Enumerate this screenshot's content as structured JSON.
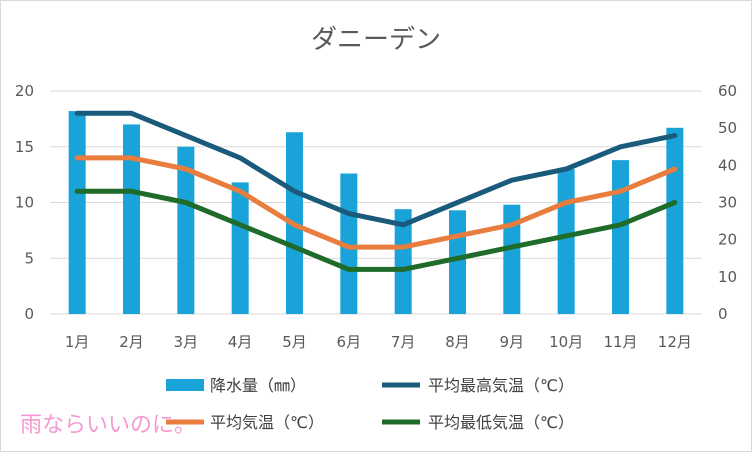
{
  "chart_data": {
    "type": "bar+line",
    "title": "ダニーデン",
    "categories": [
      "1月",
      "2月",
      "3月",
      "4月",
      "5月",
      "6月",
      "7月",
      "8月",
      "9月",
      "10月",
      "11月",
      "12月"
    ],
    "left_axis": {
      "min": 0,
      "max": 20,
      "ticks": [
        "0",
        "5",
        "10",
        "15",
        "20"
      ]
    },
    "right_axis": {
      "min": 0,
      "max": 60,
      "ticks": [
        "0",
        "10",
        "20",
        "30",
        "40",
        "50",
        "60"
      ]
    },
    "grid": true,
    "bar_series": {
      "name": "降水量（㎜）",
      "axis": "right",
      "color": "#1aa3d9",
      "values": [
        54.6,
        51.0,
        45.0,
        35.4,
        48.9,
        37.8,
        28.2,
        27.9,
        29.4,
        39.0,
        41.4,
        50.1
      ]
    },
    "line_series": [
      {
        "name": "平均最高気温（℃）",
        "axis": "left",
        "color": "#1a5a7a",
        "values": [
          18,
          18,
          16,
          14,
          11,
          9,
          8,
          10,
          12,
          13,
          15,
          16
        ]
      },
      {
        "name": "平均気温（℃）",
        "axis": "left",
        "color": "#e87d3e",
        "values": [
          14,
          14,
          13,
          11,
          8,
          6,
          6,
          7,
          8,
          10,
          11,
          13
        ]
      },
      {
        "name": "平均最低気温（℃）",
        "axis": "left",
        "color": "#1e6b2a",
        "values": [
          11,
          11,
          10,
          8,
          6,
          4,
          4,
          5,
          6,
          7,
          8,
          10
        ]
      }
    ],
    "legend": {
      "position": "bottom",
      "items": [
        "降水量（㎜）",
        "平均最高気温（℃）",
        "平均気温（℃）",
        "平均最低気温（℃）"
      ]
    }
  },
  "watermark": {
    "text": "雨ならいいのに。",
    "color": "#f59ad2"
  }
}
